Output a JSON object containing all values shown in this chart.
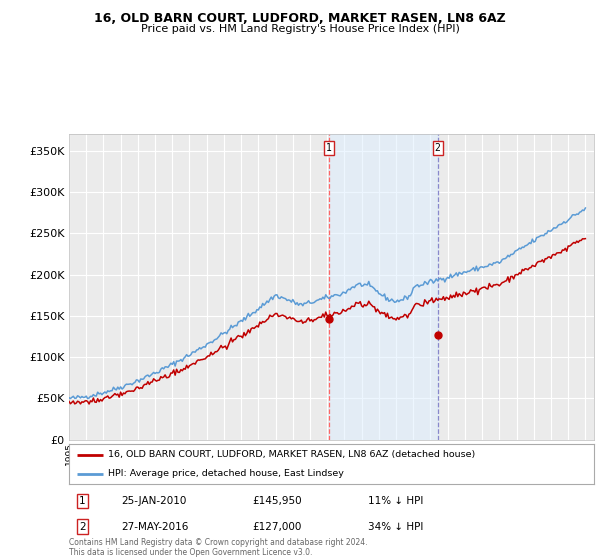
{
  "title": "16, OLD BARN COURT, LUDFORD, MARKET RASEN, LN8 6AZ",
  "subtitle": "Price paid vs. HM Land Registry's House Price Index (HPI)",
  "legend_line1": "16, OLD BARN COURT, LUDFORD, MARKET RASEN, LN8 6AZ (detached house)",
  "legend_line2": "HPI: Average price, detached house, East Lindsey",
  "annotation1": {
    "label": "1",
    "date": "25-JAN-2010",
    "price": "£145,950",
    "pct": "11% ↓ HPI"
  },
  "annotation2": {
    "label": "2",
    "date": "27-MAY-2016",
    "price": "£127,000",
    "pct": "34% ↓ HPI"
  },
  "footnote": "Contains HM Land Registry data © Crown copyright and database right 2024.\nThis data is licensed under the Open Government Licence v3.0.",
  "hpi_color": "#5B9BD5",
  "price_paid_color": "#C00000",
  "vline1_color": "#FF6666",
  "vline2_color": "#8888CC",
  "marker1_t": 2010.083,
  "marker1_y": 145950,
  "marker2_t": 2016.417,
  "marker2_y": 127000,
  "ylim": [
    0,
    370000
  ],
  "yticks": [
    0,
    50000,
    100000,
    150000,
    200000,
    250000,
    300000,
    350000
  ],
  "xlim_start": 1995,
  "xlim_end": 2025.5,
  "background_color": "#FFFFFF",
  "plot_bg_color": "#EBEBEB",
  "grid_color": "#FFFFFF"
}
